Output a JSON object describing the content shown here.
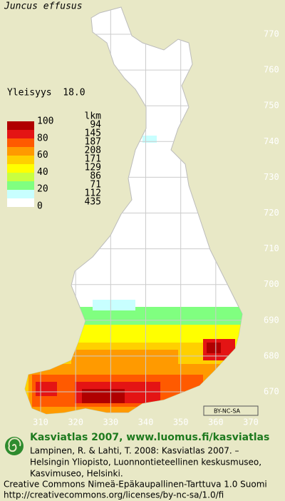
{
  "title": "Juncus effusus",
  "frequency": "Yleisyys  18.0",
  "legend": {
    "header": "lkm",
    "scale": [
      100,
      80,
      60,
      40,
      20,
      0
    ],
    "colors": [
      "#b00000",
      "#e41414",
      "#ff5a00",
      "#ff9a00",
      "#ffd000",
      "#ffff00",
      "#c8ff40",
      "#80ff80",
      "#c8ffff",
      "#ffffff"
    ],
    "counts": [
      94,
      145,
      187,
      208,
      171,
      129,
      86,
      71,
      112,
      435
    ]
  },
  "grid": {
    "north": [
      770,
      760,
      750,
      740,
      730,
      720,
      710,
      700,
      690,
      680,
      670
    ],
    "east": [
      310,
      320,
      330,
      340,
      350,
      360,
      370
    ]
  },
  "license_badge": "BY-NC-SA",
  "footer": {
    "heading": "Kasviatlas 2007, www.luomus.fi/kasviatlas",
    "citation": [
      "Lampinen, R. & Lahti, T. 2008: Kasviatlas 2007. –",
      "Helsingin Yliopisto, Luonnontieteellinen keskusmuseo,",
      "Kasvimuseo, Helsinki."
    ],
    "license": [
      "Creative Commons Nimeä-Epäkaupallinen-Tarttuva 1.0 Suomi",
      "http://creativecommons.org/licenses/by-nc-sa/1.0/fi"
    ]
  }
}
